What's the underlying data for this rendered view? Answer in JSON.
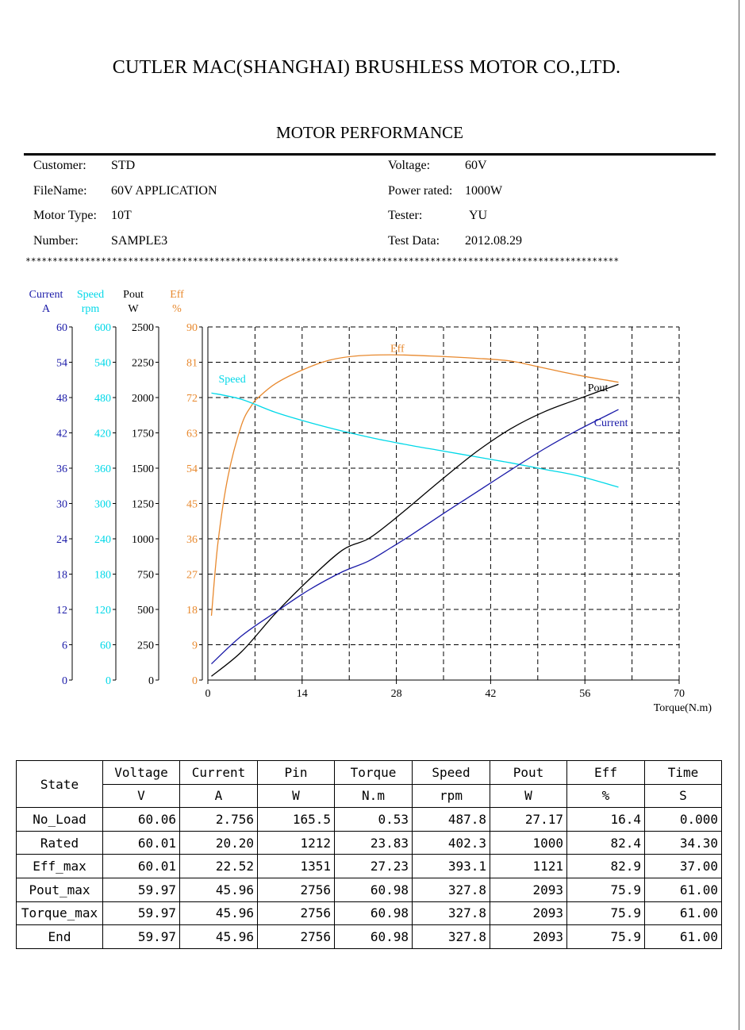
{
  "header": {
    "company": "CUTLER MAC(SHANGHAI) BRUSHLESS MOTOR CO.,LTD.",
    "title": "MOTOR PERFORMANCE"
  },
  "info": {
    "left": [
      {
        "label": "Customer:",
        "value": "STD"
      },
      {
        "label": "FileName:",
        "value": "60V APPLICATION"
      },
      {
        "label": "Motor Type:",
        "value": "10T"
      },
      {
        "label": "Number:",
        "value": "SAMPLE3"
      }
    ],
    "right": [
      {
        "label": "Voltage:",
        "value": "60V"
      },
      {
        "label": "Power rated:",
        "value": "1000W"
      },
      {
        "label": "Tester:",
        "value": "YU"
      },
      {
        "label": "Test Data:",
        "value": "2012.08.29"
      }
    ]
  },
  "separator": "**************************************************************************************************************",
  "chart_data": {
    "type": "line",
    "xlabel": "Torque(N.m)",
    "xlim": [
      0,
      70
    ],
    "xticks": [
      "0",
      "14",
      "28",
      "42",
      "56",
      "70"
    ],
    "grid": true,
    "axes": [
      {
        "name": "Current",
        "unit": "A",
        "color": "#1a1aa8",
        "ticks": [
          "0",
          "6",
          "12",
          "18",
          "24",
          "30",
          "36",
          "42",
          "48",
          "54",
          "60"
        ],
        "range": [
          0,
          60
        ]
      },
      {
        "name": "Speed",
        "unit": "rpm",
        "color": "#00d8e8",
        "ticks": [
          "0",
          "60",
          "120",
          "180",
          "240",
          "300",
          "360",
          "420",
          "480",
          "540",
          "600"
        ],
        "range": [
          0,
          600
        ]
      },
      {
        "name": "Pout",
        "unit": "W",
        "color": "#000000",
        "ticks": [
          "0",
          "250",
          "500",
          "750",
          "1000",
          "1250",
          "1500",
          "1750",
          "2000",
          "2250",
          "2500"
        ],
        "range": [
          0,
          2500
        ]
      },
      {
        "name": "Eff",
        "unit": "%",
        "color": "#e8892e",
        "ticks": [
          "0",
          "9",
          "18",
          "27",
          "36",
          "45",
          "54",
          "63",
          "72",
          "81",
          "90"
        ],
        "range": [
          0,
          90
        ]
      }
    ],
    "series": [
      {
        "name": "Eff",
        "axis": 3,
        "color": "#e8892e",
        "x": [
          0.53,
          1.5,
          3,
          5,
          6.5,
          7.5,
          10,
          14,
          18,
          22,
          27.23,
          33,
          40,
          45,
          50,
          55,
          60.98
        ],
        "y": [
          16.4,
          35,
          52,
          65,
          70,
          72,
          75.5,
          79,
          81.5,
          82.6,
          82.9,
          82.6,
          82,
          81.3,
          79.5,
          77.7,
          75.9
        ]
      },
      {
        "name": "Speed",
        "axis": 1,
        "color": "#00d8e8",
        "x": [
          0.53,
          5,
          10,
          15,
          20,
          25,
          30,
          35,
          40,
          45,
          50,
          55,
          60.98
        ],
        "y": [
          487.8,
          477,
          455,
          438,
          423,
          410,
          399,
          389,
          379,
          369,
          358,
          347,
          327.8
        ]
      },
      {
        "name": "Pout",
        "axis": 2,
        "color": "#000000",
        "x": [
          0.53,
          5,
          10,
          15,
          20,
          23.83,
          27.23,
          30,
          35,
          40,
          45,
          50,
          55,
          60.98
        ],
        "y": [
          27.17,
          200,
          470,
          710,
          920,
          1000,
          1121,
          1230,
          1430,
          1620,
          1780,
          1900,
          1990,
          2093
        ]
      },
      {
        "name": "Current",
        "axis": 0,
        "color": "#1a1aa8",
        "x": [
          0.53,
          5,
          10,
          15,
          20,
          23.83,
          27.23,
          30,
          35,
          40,
          45,
          50,
          55,
          60.98
        ],
        "y": [
          2.756,
          7.5,
          11.5,
          15.3,
          18.4,
          20.2,
          22.52,
          24.5,
          28.3,
          32,
          35.7,
          39.3,
          42.5,
          45.96
        ]
      }
    ],
    "labels": [
      {
        "text": "Eff",
        "series": "Eff"
      },
      {
        "text": "Speed",
        "series": "Speed"
      },
      {
        "text": "Pout",
        "series": "Pout"
      },
      {
        "text": "Current",
        "series": "Current"
      }
    ]
  },
  "table": {
    "headers": [
      "State",
      "Voltage",
      "Current",
      "Pin",
      "Torque",
      "Speed",
      "Pout",
      "Eff",
      "Time"
    ],
    "units": [
      "V",
      "A",
      "W",
      "N.m",
      "rpm",
      "W",
      "%",
      "S"
    ],
    "rows": [
      [
        "No_Load",
        "60.06",
        "2.756",
        "165.5",
        "0.53",
        "487.8",
        "27.17",
        "16.4",
        "0.000"
      ],
      [
        "Rated",
        "60.01",
        "20.20",
        "1212",
        "23.83",
        "402.3",
        "1000",
        "82.4",
        "34.30"
      ],
      [
        "Eff_max",
        "60.01",
        "22.52",
        "1351",
        "27.23",
        "393.1",
        "1121",
        "82.9",
        "37.00"
      ],
      [
        "Pout_max",
        "59.97",
        "45.96",
        "2756",
        "60.98",
        "327.8",
        "2093",
        "75.9",
        "61.00"
      ],
      [
        "Torque_max",
        "59.97",
        "45.96",
        "2756",
        "60.98",
        "327.8",
        "2093",
        "75.9",
        "61.00"
      ],
      [
        "End",
        "59.97",
        "45.96",
        "2756",
        "60.98",
        "327.8",
        "2093",
        "75.9",
        "61.00"
      ]
    ]
  }
}
